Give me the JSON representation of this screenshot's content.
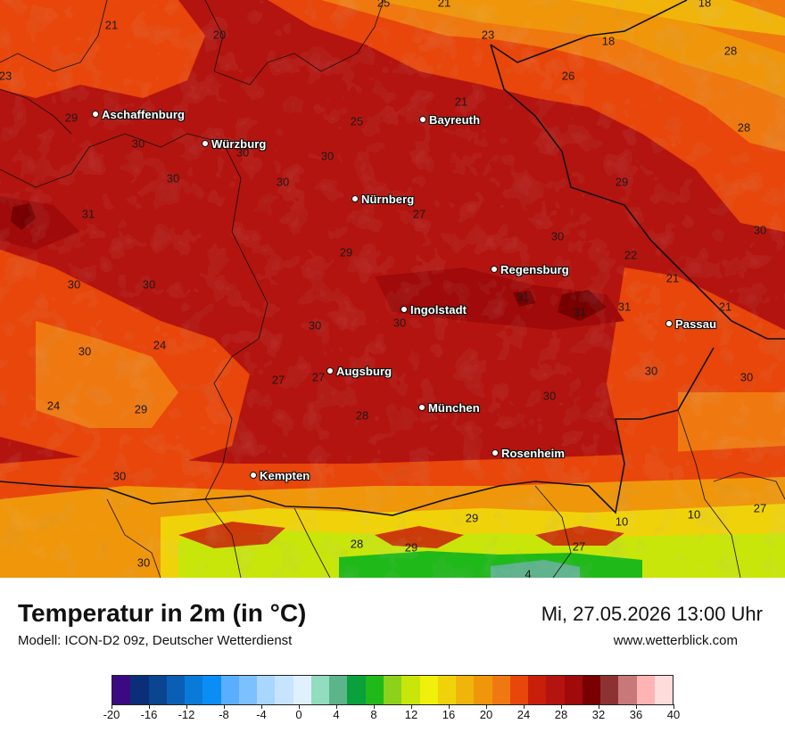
{
  "title": "Temperatur in 2m (in °C)",
  "model": "Modell: ICON-D2 09z, Deutscher Wetterdienst",
  "datetime": "Mi, 27.05.2026 13:00 Uhr",
  "website": "www.wetterblick.com",
  "cities": [
    {
      "name": "Aschaffenburg"
    },
    {
      "name": "Würzburg"
    },
    {
      "name": "Bayreuth"
    },
    {
      "name": "Nürnberg"
    },
    {
      "name": "Regensburg"
    },
    {
      "name": "Ingolstadt"
    },
    {
      "name": "Passau"
    },
    {
      "name": "Augsburg"
    },
    {
      "name": "München"
    },
    {
      "name": "Rosenheim"
    },
    {
      "name": "Kempten"
    }
  ],
  "map_values": [
    "25",
    "21",
    "18",
    "21",
    "20",
    "23",
    "18",
    "28",
    "23",
    "26",
    "21",
    "29",
    "25",
    "28",
    "30",
    "30",
    "30",
    "29",
    "30",
    "30",
    "27",
    "31",
    "30",
    "30",
    "22",
    "29",
    "30",
    "30",
    "31",
    "31",
    "31",
    "21",
    "21",
    "30",
    "30",
    "24",
    "30",
    "30",
    "27",
    "27",
    "30",
    "24",
    "29",
    "28",
    "30",
    "30",
    "29",
    "10",
    "10",
    "27",
    "28",
    "29",
    "27",
    "30",
    "4"
  ],
  "colorbar": {
    "ticks": [
      "-20",
      "-16",
      "-12",
      "-8",
      "-4",
      "0",
      "4",
      "8",
      "12",
      "16",
      "20",
      "24",
      "28",
      "32",
      "36",
      "40"
    ],
    "colors": [
      "#3b0a82",
      "#0a2f78",
      "#0a4590",
      "#0a5fb4",
      "#0a7ad8",
      "#0a8ef5",
      "#5aaeff",
      "#7cc0ff",
      "#a8d6ff",
      "#c6e4ff",
      "#e0f0ff",
      "#92dcc0",
      "#5cb48a",
      "#0aa03c",
      "#20b91a",
      "#8cd21a",
      "#c8e60a",
      "#f0f00a",
      "#f0d20a",
      "#f0b40a",
      "#f0960a",
      "#f07810",
      "#e8460a",
      "#c81e0a",
      "#b4140f",
      "#a00a0a",
      "#780000",
      "#8c3232",
      "#c87878",
      "#ffb4b4",
      "#ffdcdc"
    ]
  }
}
